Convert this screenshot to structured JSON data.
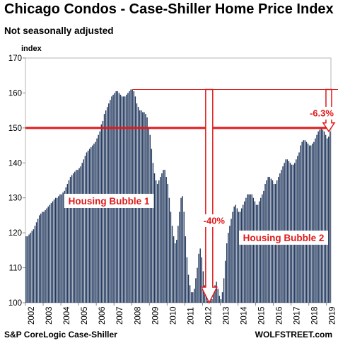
{
  "chart_data": {
    "type": "bar",
    "title": "Chicago Condos - Case-Shiller Home Price Index",
    "subtitle": "Not seasonally adjusted",
    "ylabel": "index",
    "ylim": [
      100,
      170
    ],
    "yticks": [
      100,
      110,
      120,
      130,
      140,
      150,
      160,
      170
    ],
    "xticks": [
      "2002",
      "2003",
      "2004",
      "2005",
      "2006",
      "2007",
      "2008",
      "2009",
      "2010",
      "2011",
      "2012",
      "2013",
      "2014",
      "2015",
      "2016",
      "2017",
      "2018",
      "2019"
    ],
    "x_start": "2002-01",
    "x_end": "2019-03",
    "reference_line": {
      "value": 150,
      "color": "#e01a1a"
    },
    "bar_color": "#23395f",
    "annotations": [
      {
        "text": "Housing Bubble 1"
      },
      {
        "text": "Housing Bubble 2"
      },
      {
        "text": "-40%"
      },
      {
        "text": "-6.3%"
      }
    ],
    "series": [
      {
        "values": [
          119,
          119,
          119.5,
          120,
          120.5,
          121,
          122,
          123,
          124,
          125,
          125.5,
          126,
          126,
          126.5,
          127,
          127.5,
          128,
          128.5,
          129,
          129.5,
          130,
          130,
          130.5,
          131,
          131,
          131.5,
          132,
          133,
          134,
          135,
          136,
          136.5,
          137,
          137.5,
          138,
          138,
          138.5,
          139,
          140,
          141,
          142,
          143,
          143.5,
          144,
          144.5,
          145,
          145.5,
          146,
          147,
          148,
          149,
          151,
          152,
          154,
          155,
          156,
          157,
          158,
          159,
          159.5,
          160,
          160.5,
          160.5,
          160,
          159.5,
          159,
          159,
          159,
          159.5,
          160,
          160.5,
          161,
          161,
          160.5,
          159,
          157,
          156,
          155,
          155,
          154.5,
          154.5,
          154,
          153,
          150,
          148,
          144,
          140,
          137,
          135,
          134,
          135,
          136,
          137,
          138,
          138,
          136,
          134,
          130,
          126,
          122,
          119,
          117,
          118,
          122,
          126,
          130,
          130.5,
          126,
          119,
          113,
          108,
          105,
          103,
          103,
          104,
          107,
          110,
          114,
          115.5,
          113,
          109,
          105,
          102,
          100.5,
          100,
          100.5,
          101,
          103,
          105,
          106,
          104,
          102,
          101,
          103,
          107,
          112,
          117,
          120,
          122,
          124,
          126,
          127.5,
          128,
          127,
          126,
          126,
          127,
          128,
          129,
          130,
          131,
          131,
          131,
          131,
          130,
          129,
          128,
          128,
          129,
          130,
          131,
          132,
          134,
          135,
          136,
          136,
          135.5,
          135,
          134,
          134,
          135,
          136,
          137,
          138,
          139,
          140,
          141,
          141,
          140.5,
          140,
          139.5,
          139.5,
          140,
          141,
          142,
          143,
          145,
          146,
          146.5,
          146.5,
          146,
          145.5,
          145,
          145,
          145.5,
          146,
          147,
          148,
          149,
          149.5,
          150,
          149.5,
          149,
          148,
          147,
          147.5,
          149
        ]
      }
    ]
  },
  "header": {
    "title": "Chicago Condos - Case-Shiller Home Price Index",
    "subtitle": "Not seasonally adjusted"
  },
  "footer": {
    "source": "S&P CoreLogic Case-Shiller",
    "brand": "WOLFSTREET.com"
  }
}
